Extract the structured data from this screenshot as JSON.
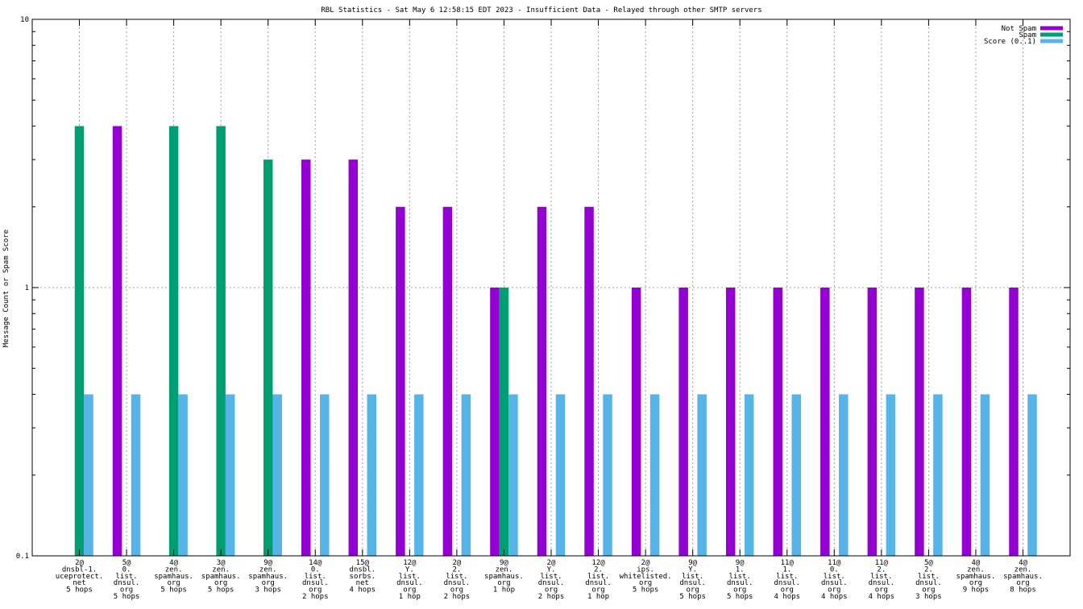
{
  "chart_data": {
    "type": "bar",
    "title": "RBL Statistics - Sat May  6 12:58:15 EDT 2023 - Insufficient Data - Relayed through other SMTP servers",
    "xlabel": "",
    "ylabel": "Message Count or Spam Score",
    "yscale": "log",
    "ylim": [
      0.1,
      10
    ],
    "yticks": [
      {
        "value": 0.1,
        "label": "0.1"
      },
      {
        "value": 1,
        "label": "1"
      },
      {
        "value": 10,
        "label": "10"
      }
    ],
    "grid": true,
    "legend_position": "top-right",
    "categories": [
      [
        "2@",
        "dnsbl-1.",
        "uceprotect.",
        "net",
        "5 hops"
      ],
      [
        "5@",
        "0.",
        "list.",
        "dnsul.",
        "org",
        "5 hops"
      ],
      [
        "4@",
        "zen.",
        "spamhaus.",
        "org",
        "5 hops"
      ],
      [
        "3@",
        "zen.",
        "spamhaus.",
        "org",
        "5 hops"
      ],
      [
        "9@",
        "zen.",
        "spamhaus.",
        "org",
        "3 hops"
      ],
      [
        "14@",
        "0.",
        "list.",
        "dnsul.",
        "org",
        "2 hops"
      ],
      [
        "15@",
        "dnsbl.",
        "sorbs.",
        "net",
        "4 hops"
      ],
      [
        "12@",
        "Y.",
        "list.",
        "dnsul.",
        "org",
        "1 hop"
      ],
      [
        "2@",
        "2.",
        "list.",
        "dnsul.",
        "org",
        "2 hops"
      ],
      [
        "9@",
        "zen.",
        "spamhaus.",
        "org",
        "1 hop"
      ],
      [
        "2@",
        "Y.",
        "list.",
        "dnsul.",
        "org",
        "2 hops"
      ],
      [
        "12@",
        "2.",
        "list.",
        "dnsul.",
        "org",
        "1 hop"
      ],
      [
        "2@",
        "ips.",
        "whitelisted.",
        "org",
        "5 hops"
      ],
      [
        "9@",
        "Y.",
        "list.",
        "dnsul.",
        "org",
        "5 hops"
      ],
      [
        "9@",
        "1.",
        "list.",
        "dnsul.",
        "org",
        "5 hops"
      ],
      [
        "11@",
        "1.",
        "list.",
        "dnsul.",
        "org",
        "4 hops"
      ],
      [
        "11@",
        "0.",
        "list.",
        "dnsul.",
        "org",
        "4 hops"
      ],
      [
        "11@",
        "2.",
        "list.",
        "dnsul.",
        "org",
        "4 hops"
      ],
      [
        "5@",
        "2.",
        "list.",
        "dnsul.",
        "org",
        "3 hops"
      ],
      [
        "4@",
        "zen.",
        "spamhaus.",
        "org",
        "9 hops"
      ],
      [
        "4@",
        "zen.",
        "spamhaus.",
        "org",
        "8 hops"
      ]
    ],
    "series": [
      {
        "name": "Not Spam",
        "color": "#9400d3",
        "values": [
          0,
          4,
          0,
          0,
          0,
          3,
          3,
          2,
          2,
          1,
          2,
          2,
          1,
          1,
          1,
          1,
          1,
          1,
          1,
          1,
          1
        ]
      },
      {
        "name": "Spam",
        "color": "#009e73",
        "values": [
          4,
          0,
          4,
          4,
          3,
          0,
          0,
          0,
          0,
          1,
          0,
          0,
          0,
          0,
          0,
          0,
          0,
          0,
          0,
          0,
          0
        ]
      },
      {
        "name": "Score (0..1)",
        "color": "#56b4e9",
        "values": [
          0.4,
          0.4,
          0.4,
          0.4,
          0.4,
          0.4,
          0.4,
          0.4,
          0.4,
          0.4,
          0.4,
          0.4,
          0.4,
          0.4,
          0.4,
          0.4,
          0.4,
          0.4,
          0.4,
          0.4,
          0.4
        ]
      }
    ]
  }
}
